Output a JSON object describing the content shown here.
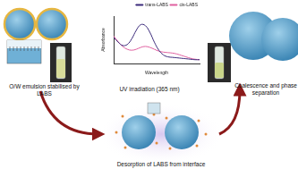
{
  "diagram": {
    "labels": {
      "left": "O/W emulsion stabilised by LABS",
      "top": "UV irradiation (365 nm)",
      "bottom": "Desorption of LABS from interface",
      "right": "Coalescence and phase separation"
    }
  },
  "chart_data": {
    "type": "line",
    "x_label": "Wavelength",
    "y_label": "Absorbance",
    "x": [
      1,
      2,
      3,
      4,
      5,
      6,
      7,
      8,
      9,
      10,
      11,
      12,
      13,
      14,
      15,
      16,
      17,
      18,
      19,
      20
    ],
    "series": [
      {
        "name": "trans-LABS",
        "color": "#3b2a7a",
        "values": [
          0.55,
          0.45,
          0.38,
          0.4,
          0.52,
          0.7,
          0.82,
          0.8,
          0.66,
          0.45,
          0.28,
          0.18,
          0.14,
          0.13,
          0.12,
          0.11,
          0.1,
          0.09,
          0.08,
          0.08
        ]
      },
      {
        "name": "cis-LABS",
        "color": "#e060a0",
        "values": [
          0.58,
          0.46,
          0.36,
          0.3,
          0.28,
          0.3,
          0.34,
          0.36,
          0.34,
          0.3,
          0.26,
          0.24,
          0.23,
          0.22,
          0.2,
          0.17,
          0.14,
          0.11,
          0.09,
          0.08
        ]
      }
    ],
    "xlim": [
      1,
      20
    ],
    "ylim": [
      0,
      1
    ],
    "xticks": [],
    "yticks": [],
    "tick_labels": false,
    "grid": false,
    "legend": "upper right"
  }
}
